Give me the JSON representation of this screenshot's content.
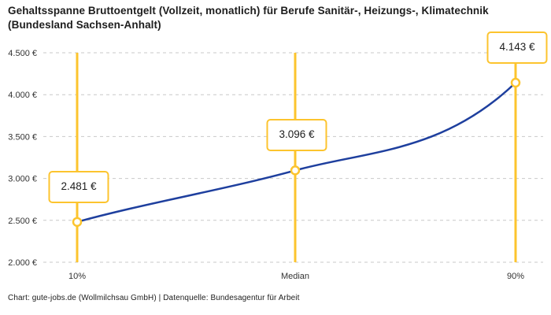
{
  "title": "Gehaltsspanne Bruttoentgelt (Vollzeit, monatlich) für Berufe Sanitär-, Heizungs-, Klimatechnik (Bundesland Sachsen-Anhalt)",
  "footer": "Chart: gute-jobs.de (Wollmilchsau GmbH) | Datenquelle: Bundesagentur für Arbeit",
  "chart_data": {
    "type": "line",
    "title": "Gehaltsspanne Bruttoentgelt (Vollzeit, monatlich) für Berufe Sanitär-, Heizungs-, Klimatechnik (Bundesland Sachsen-Anhalt)",
    "categories": [
      "10%",
      "Median",
      "90%"
    ],
    "values": [
      2481,
      3096,
      4143
    ],
    "point_labels": [
      "2.481 €",
      "3.096 €",
      "4.143 €"
    ],
    "xlabel": "",
    "ylabel": "",
    "ylim": [
      2000,
      4500
    ],
    "ytick_values": [
      2000,
      2500,
      3000,
      3500,
      4000,
      4500
    ],
    "ytick_labels": [
      "2.000 €",
      "2.500 €",
      "3.000 €",
      "3.500 €",
      "4.000 €",
      "4.500 €"
    ],
    "grid": "horizontal-dashed",
    "legend": false,
    "colors": {
      "line": "#1E3F9E",
      "percentile_lines": "#FCC42E",
      "grid": "#C9C9C9",
      "marker_fill": "#FFFFFF",
      "axis_text": "#333333"
    }
  }
}
